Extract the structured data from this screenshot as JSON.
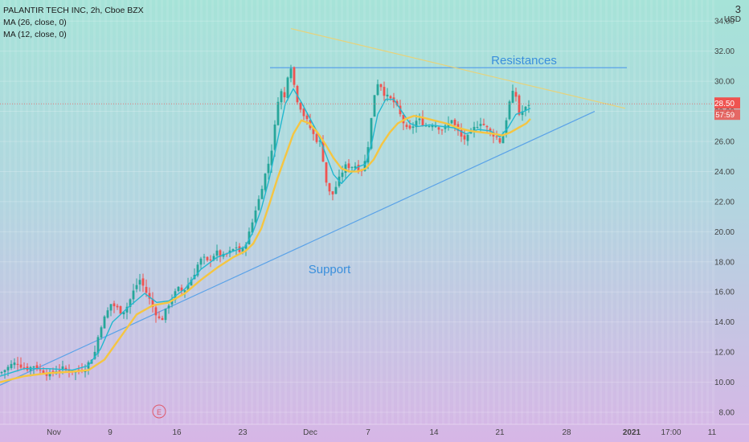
{
  "legend": {
    "title": "PALANTIR TECH INC, 2h, Cboe BZX",
    "ma1": "MA (26, close, 0)",
    "ma2": "MA (12, close, 0)"
  },
  "corner": {
    "number": "3",
    "currency": "USD"
  },
  "chart_data": {
    "type": "candlestick",
    "title": "PALANTIR TECH INC, 2h, Cboe BZX",
    "ylim": [
      7.2,
      35.4
    ],
    "yticks": [
      "8.00",
      "10.00",
      "12.00",
      "14.00",
      "16.00",
      "18.00",
      "20.00",
      "22.00",
      "24.00",
      "26.00",
      "28.00",
      "30.00",
      "32.00",
      "34.00"
    ],
    "ytick_values": [
      8,
      10,
      12,
      14,
      16,
      18,
      20,
      22,
      24,
      26,
      28,
      30,
      32,
      34
    ],
    "xticks": [
      {
        "label": "Nov",
        "t": 67
      },
      {
        "label": "9",
        "t": 137
      },
      {
        "label": "16",
        "t": 220
      },
      {
        "label": "23",
        "t": 302
      },
      {
        "label": "Dec",
        "t": 386
      },
      {
        "label": "7",
        "t": 458
      },
      {
        "label": "14",
        "t": 540
      },
      {
        "label": "21",
        "t": 622
      },
      {
        "label": "28",
        "t": 705
      },
      {
        "label": "2021",
        "t": 786
      },
      {
        "label": "17:00",
        "t": 835
      },
      {
        "label": "11",
        "t": 886
      }
    ],
    "last_price": "28.50",
    "countdown": "57:59",
    "annotations": {
      "resistance_label": "Resistances",
      "support_label": "Support",
      "earnings_marker": "E"
    },
    "resistance_level": 30.9,
    "resistance_range": [
      336,
      780
    ],
    "descending_trendline": [
      [
        362,
        33.5
      ],
      [
        778,
        28.2
      ]
    ],
    "support_trendline": [
      [
        0,
        9.8
      ],
      [
        740,
        28.0
      ]
    ],
    "close_path": [
      [
        0,
        10.6
      ],
      [
        8,
        10.9
      ],
      [
        15,
        11.2
      ],
      [
        22,
        11.3
      ],
      [
        28,
        11.0
      ],
      [
        35,
        10.9
      ],
      [
        42,
        11.1
      ],
      [
        50,
        10.8
      ],
      [
        57,
        10.6
      ],
      [
        63,
        10.5
      ],
      [
        70,
        10.8
      ],
      [
        78,
        10.9
      ],
      [
        85,
        10.8
      ],
      [
        92,
        10.7
      ],
      [
        100,
        10.8
      ],
      [
        106,
        11.0
      ],
      [
        112,
        11.4
      ],
      [
        118,
        12.0
      ],
      [
        122,
        13.0
      ],
      [
        126,
        13.8
      ],
      [
        132,
        14.5
      ],
      [
        138,
        15.2
      ],
      [
        144,
        15.0
      ],
      [
        150,
        14.7
      ],
      [
        156,
        14.8
      ],
      [
        162,
        15.5
      ],
      [
        168,
        16.3
      ],
      [
        174,
        16.8
      ],
      [
        180,
        16.2
      ],
      [
        186,
        15.5
      ],
      [
        190,
        15.0
      ],
      [
        195,
        14.5
      ],
      [
        200,
        14.0
      ],
      [
        205,
        14.6
      ],
      [
        210,
        15.2
      ],
      [
        216,
        15.8
      ],
      [
        222,
        16.2
      ],
      [
        228,
        16.0
      ],
      [
        234,
        16.5
      ],
      [
        240,
        17.0
      ],
      [
        246,
        17.8
      ],
      [
        252,
        18.3
      ],
      [
        258,
        18.0
      ],
      [
        264,
        18.4
      ],
      [
        270,
        18.6
      ],
      [
        276,
        18.3
      ],
      [
        282,
        18.5
      ],
      [
        288,
        18.7
      ],
      [
        294,
        19.0
      ],
      [
        300,
        18.5
      ],
      [
        306,
        19.3
      ],
      [
        312,
        20.2
      ],
      [
        318,
        21.5
      ],
      [
        323,
        22.3
      ],
      [
        328,
        23.5
      ],
      [
        333,
        24.3
      ],
      [
        338,
        25.5
      ],
      [
        342,
        27.0
      ],
      [
        346,
        28.8
      ],
      [
        350,
        29.3
      ],
      [
        355,
        28.8
      ],
      [
        360,
        31.5
      ],
      [
        364,
        30.5
      ],
      [
        368,
        29.0
      ],
      [
        372,
        28.5
      ],
      [
        376,
        28.0
      ],
      [
        380,
        27.5
      ],
      [
        384,
        27.2
      ],
      [
        388,
        26.6
      ],
      [
        392,
        26.3
      ],
      [
        396,
        25.9
      ],
      [
        400,
        26.0
      ],
      [
        404,
        23.6
      ],
      [
        408,
        23.0
      ],
      [
        412,
        22.2
      ],
      [
        416,
        22.8
      ],
      [
        420,
        23.2
      ],
      [
        424,
        23.8
      ],
      [
        428,
        24.2
      ],
      [
        432,
        24.5
      ],
      [
        436,
        24.2
      ],
      [
        440,
        24.5
      ],
      [
        444,
        24.3
      ],
      [
        448,
        24.0
      ],
      [
        452,
        24.3
      ],
      [
        456,
        25.0
      ],
      [
        460,
        26.5
      ],
      [
        464,
        28.5
      ],
      [
        468,
        29.8
      ],
      [
        472,
        30.0
      ],
      [
        476,
        29.4
      ],
      [
        480,
        29.0
      ],
      [
        484,
        28.9
      ],
      [
        488,
        28.7
      ],
      [
        492,
        28.5
      ],
      [
        496,
        28.0
      ],
      [
        500,
        27.5
      ],
      [
        504,
        27.0
      ],
      [
        508,
        26.6
      ],
      [
        512,
        26.9
      ],
      [
        516,
        27.2
      ],
      [
        520,
        27.5
      ],
      [
        526,
        27.2
      ],
      [
        532,
        27.0
      ],
      [
        538,
        27.2
      ],
      [
        544,
        27.0
      ],
      [
        550,
        26.8
      ],
      [
        556,
        27.0
      ],
      [
        562,
        27.5
      ],
      [
        568,
        26.8
      ],
      [
        574,
        26.3
      ],
      [
        580,
        26.1
      ],
      [
        586,
        26.6
      ],
      [
        592,
        27.0
      ],
      [
        598,
        27.3
      ],
      [
        604,
        27.0
      ],
      [
        610,
        26.6
      ],
      [
        616,
        26.4
      ],
      [
        622,
        26.0
      ],
      [
        626,
        26.4
      ],
      [
        630,
        27.5
      ],
      [
        634,
        28.6
      ],
      [
        638,
        29.2
      ],
      [
        642,
        29.0
      ],
      [
        646,
        27.8
      ],
      [
        650,
        28.0
      ],
      [
        654,
        28.2
      ],
      [
        658,
        28.5
      ]
    ],
    "series": [
      {
        "name": "MA (12, close, 0)",
        "color": "#22b8cf",
        "points": [
          [
            0,
            10.4
          ],
          [
            30,
            10.9
          ],
          [
            60,
            10.9
          ],
          [
            90,
            10.8
          ],
          [
            110,
            11.1
          ],
          [
            125,
            12.2
          ],
          [
            140,
            14.0
          ],
          [
            160,
            15.0
          ],
          [
            180,
            15.9
          ],
          [
            195,
            15.3
          ],
          [
            210,
            15.4
          ],
          [
            230,
            16.2
          ],
          [
            250,
            17.5
          ],
          [
            270,
            18.3
          ],
          [
            290,
            18.7
          ],
          [
            305,
            19.0
          ],
          [
            315,
            20.0
          ],
          [
            325,
            21.5
          ],
          [
            335,
            23.5
          ],
          [
            345,
            26.0
          ],
          [
            355,
            28.5
          ],
          [
            365,
            29.5
          ],
          [
            375,
            28.6
          ],
          [
            385,
            27.6
          ],
          [
            395,
            26.6
          ],
          [
            405,
            25.2
          ],
          [
            415,
            23.8
          ],
          [
            425,
            23.2
          ],
          [
            435,
            23.8
          ],
          [
            445,
            24.3
          ],
          [
            455,
            24.5
          ],
          [
            463,
            26.0
          ],
          [
            470,
            27.8
          ],
          [
            480,
            28.8
          ],
          [
            490,
            28.8
          ],
          [
            500,
            28.0
          ],
          [
            510,
            27.2
          ],
          [
            520,
            27.0
          ],
          [
            535,
            27.1
          ],
          [
            550,
            27.0
          ],
          [
            565,
            26.9
          ],
          [
            580,
            26.5
          ],
          [
            595,
            26.8
          ],
          [
            610,
            26.7
          ],
          [
            622,
            26.3
          ],
          [
            632,
            26.9
          ],
          [
            642,
            27.8
          ],
          [
            652,
            28.0
          ],
          [
            660,
            28.2
          ]
        ]
      },
      {
        "name": "MA (26, close, 0)",
        "color": "#f5c542",
        "points": [
          [
            0,
            10.0
          ],
          [
            30,
            10.4
          ],
          [
            60,
            10.6
          ],
          [
            90,
            10.7
          ],
          [
            110,
            10.8
          ],
          [
            130,
            11.5
          ],
          [
            150,
            13.0
          ],
          [
            170,
            14.5
          ],
          [
            190,
            15.1
          ],
          [
            210,
            15.3
          ],
          [
            230,
            15.9
          ],
          [
            250,
            16.8
          ],
          [
            270,
            17.6
          ],
          [
            290,
            18.3
          ],
          [
            305,
            18.7
          ],
          [
            315,
            19.2
          ],
          [
            325,
            20.2
          ],
          [
            335,
            21.8
          ],
          [
            345,
            23.5
          ],
          [
            355,
            25.0
          ],
          [
            365,
            26.5
          ],
          [
            375,
            27.4
          ],
          [
            385,
            27.2
          ],
          [
            395,
            26.6
          ],
          [
            405,
            25.8
          ],
          [
            415,
            24.9
          ],
          [
            425,
            24.2
          ],
          [
            435,
            24.0
          ],
          [
            445,
            24.0
          ],
          [
            455,
            24.2
          ],
          [
            465,
            24.8
          ],
          [
            475,
            25.8
          ],
          [
            485,
            26.6
          ],
          [
            495,
            27.2
          ],
          [
            505,
            27.5
          ],
          [
            515,
            27.7
          ],
          [
            525,
            27.6
          ],
          [
            540,
            27.4
          ],
          [
            555,
            27.2
          ],
          [
            570,
            26.9
          ],
          [
            585,
            26.7
          ],
          [
            600,
            26.6
          ],
          [
            615,
            26.5
          ],
          [
            625,
            26.4
          ],
          [
            635,
            26.6
          ],
          [
            645,
            26.9
          ],
          [
            655,
            27.2
          ],
          [
            660,
            27.5
          ]
        ]
      }
    ],
    "colors": {
      "up": "#26a69a",
      "down": "#ef5350",
      "ma12": "#22b8cf",
      "ma26": "#f5c542",
      "resistance": "#5aa2e8",
      "descending": "#e8d27a",
      "support": "#5aa2e8",
      "last_price_line": "#e07a7a"
    }
  }
}
